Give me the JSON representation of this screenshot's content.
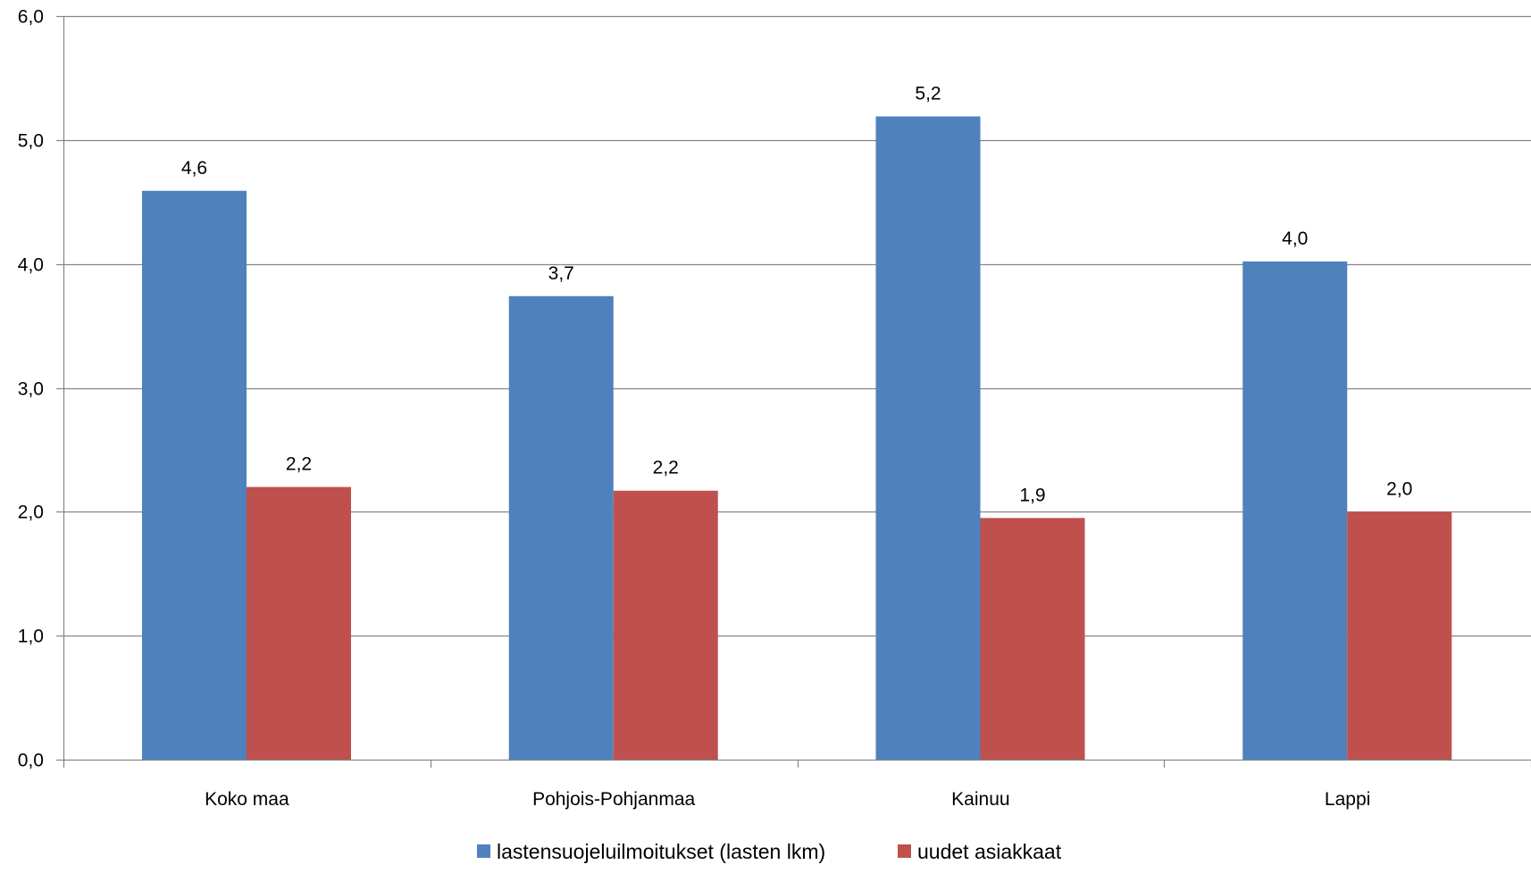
{
  "chart_data": {
    "type": "bar",
    "title": "",
    "xlabel": "",
    "ylabel": "",
    "ylim": [
      0,
      6
    ],
    "yticks": [
      0,
      1,
      2,
      3,
      4,
      5,
      6
    ],
    "ytick_labels": [
      "0,0",
      "1,0",
      "2,0",
      "3,0",
      "4,0",
      "5,0",
      "6,0"
    ],
    "grid": "horizontal",
    "legend_position": "bottom",
    "categories": [
      "Koko maa",
      "Pohjois-Pohjanmaa",
      "Kainuu",
      "Lappi"
    ],
    "series": [
      {
        "name": "lastensuojeluilmoitukset (lasten lkm)",
        "color": "#4F81BD",
        "values": [
          4.59,
          3.74,
          5.19,
          4.02
        ],
        "labels": [
          "4,6",
          "3,7",
          "5,2",
          "4,0"
        ]
      },
      {
        "name": "uudet asiakkaat",
        "color": "#C0504D",
        "values": [
          2.2,
          2.17,
          1.95,
          2.0
        ],
        "labels": [
          "2,2",
          "2,2",
          "1,9",
          "2,0"
        ]
      }
    ]
  }
}
